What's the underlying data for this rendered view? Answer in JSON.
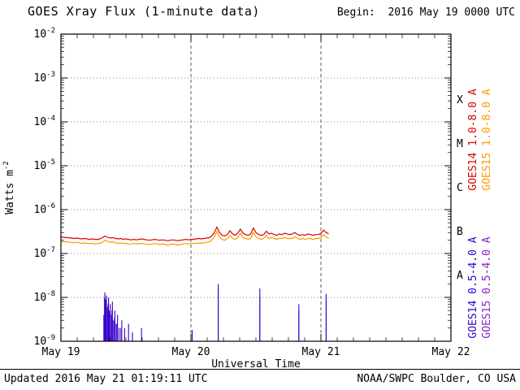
{
  "header": {
    "title": "GOES Xray Flux (1-minute data)",
    "begin": "Begin:  2016 May 19 0000 UTC"
  },
  "footer": {
    "updated": "Updated 2016 May 21 01:19:11 UTC",
    "source": "NOAA/SWPC Boulder, CO USA"
  },
  "colors": {
    "goes14_long": "#dd0000",
    "goes15_long": "#ff9900",
    "goes14_short": "#3300cc",
    "goes15_short": "#8822cc",
    "frame": "#000000",
    "background": "#ffffff"
  },
  "chart_data": {
    "type": "line",
    "title": "GOES Xray Flux (1-minute data)",
    "xlabel": "Universal Time",
    "ylabel_base": "Watts m",
    "ylabel_exp": "-2",
    "x_range_days": [
      0,
      3
    ],
    "x_ticks": [
      {
        "pos": 0,
        "label": "May 19"
      },
      {
        "pos": 1,
        "label": "May 20"
      },
      {
        "pos": 2,
        "label": "May 21"
      },
      {
        "pos": 3,
        "label": "May 22"
      }
    ],
    "x_minor_tick_days": 0.125,
    "y_log_min": -9,
    "y_log_max": -2,
    "grid": {
      "horizontal_decades": true,
      "vertical_days": [
        1,
        2
      ]
    },
    "flare_class_labels": [
      {
        "label": "X",
        "log_center": -3.5
      },
      {
        "label": "M",
        "log_center": -4.5
      },
      {
        "label": "C",
        "log_center": -5.5
      },
      {
        "label": "B",
        "log_center": -6.5
      },
      {
        "label": "A",
        "log_center": -7.5
      }
    ],
    "legend": [
      {
        "id": "goes14-long",
        "label": "GOES14 1.0-8.0 A",
        "color": "#dd0000"
      },
      {
        "id": "goes15-long",
        "label": "GOES15 1.0-8.0 A",
        "color": "#ff9900"
      },
      {
        "id": "goes14-short",
        "label": "GOES14 0.5-4.0 A",
        "color": "#3300cc"
      },
      {
        "id": "goes15-short",
        "label": "GOES15 0.5-4.0 A",
        "color": "#8822cc"
      }
    ],
    "series": [
      {
        "id": "goes15-long",
        "name": "GOES15 1.0-8.0 A",
        "kind": "line",
        "color": "#ff9900",
        "scale": 1e-07,
        "x_start": 0,
        "dx": 0.02,
        "values": [
          1.9,
          1.85,
          1.85,
          1.8,
          1.8,
          1.75,
          1.8,
          1.75,
          1.7,
          1.75,
          1.7,
          1.7,
          1.7,
          1.65,
          1.7,
          1.7,
          1.8,
          2.0,
          1.9,
          1.8,
          1.85,
          1.75,
          1.7,
          1.75,
          1.7,
          1.7,
          1.65,
          1.65,
          1.7,
          1.65,
          1.7,
          1.7,
          1.65,
          1.65,
          1.6,
          1.65,
          1.7,
          1.65,
          1.6,
          1.65,
          1.6,
          1.55,
          1.6,
          1.65,
          1.6,
          1.55,
          1.6,
          1.65,
          1.7,
          1.65,
          1.7,
          1.7,
          1.7,
          1.75,
          1.7,
          1.75,
          1.8,
          1.85,
          2.0,
          2.4,
          3.2,
          2.4,
          2.1,
          2.0,
          2.2,
          2.6,
          2.2,
          2.1,
          2.3,
          2.9,
          2.3,
          2.2,
          2.1,
          2.2,
          3.0,
          2.4,
          2.2,
          2.1,
          2.2,
          2.6,
          2.2,
          2.3,
          2.2,
          2.1,
          2.2,
          2.2,
          2.3,
          2.2,
          2.2,
          2.2,
          2.4,
          2.2,
          2.1,
          2.2,
          2.1,
          2.2,
          2.2,
          2.1,
          2.2,
          2.2,
          2.3,
          2.7,
          2.4,
          2.2
        ]
      },
      {
        "id": "goes14-long",
        "name": "GOES14 1.0-8.0 A",
        "kind": "line",
        "color": "#dd0000",
        "scale": 1e-07,
        "x_start": 0,
        "dx": 0.02,
        "values": [
          2.4,
          2.35,
          2.3,
          2.3,
          2.25,
          2.2,
          2.25,
          2.2,
          2.15,
          2.2,
          2.15,
          2.1,
          2.15,
          2.1,
          2.1,
          2.15,
          2.3,
          2.5,
          2.35,
          2.25,
          2.3,
          2.2,
          2.15,
          2.2,
          2.1,
          2.15,
          2.1,
          2.05,
          2.1,
          2.05,
          2.1,
          2.15,
          2.1,
          2.05,
          2.0,
          2.05,
          2.1,
          2.05,
          2.0,
          2.05,
          2.0,
          1.95,
          2.0,
          2.05,
          2.0,
          1.95,
          2.0,
          2.05,
          2.1,
          2.05,
          2.1,
          2.1,
          2.15,
          2.2,
          2.15,
          2.2,
          2.25,
          2.3,
          2.5,
          3.0,
          4.0,
          3.0,
          2.6,
          2.5,
          2.7,
          3.3,
          2.8,
          2.6,
          2.9,
          3.6,
          2.9,
          2.7,
          2.6,
          2.8,
          3.8,
          3.0,
          2.7,
          2.6,
          2.7,
          3.2,
          2.8,
          2.9,
          2.7,
          2.6,
          2.8,
          2.7,
          2.9,
          2.8,
          2.7,
          2.8,
          3.0,
          2.7,
          2.6,
          2.7,
          2.6,
          2.8,
          2.7,
          2.6,
          2.7,
          2.7,
          2.9,
          3.4,
          3.0,
          2.8
        ]
      },
      {
        "id": "goes15-short",
        "name": "GOES15 0.5-4.0 A",
        "kind": "spikes",
        "color": "#8822cc",
        "scale": 1e-09,
        "spikes": [
          [
            0.334,
            10
          ],
          [
            0.348,
            8
          ],
          [
            0.362,
            7
          ],
          [
            0.392,
            5
          ],
          [
            0.412,
            3.5
          ],
          [
            0.432,
            2.5
          ],
          [
            0.46,
            2
          ],
          [
            1.21,
            15
          ],
          [
            1.53,
            11
          ],
          [
            1.83,
            5
          ],
          [
            2.04,
            9
          ]
        ]
      },
      {
        "id": "goes14-short",
        "name": "GOES14 0.5-4.0 A",
        "kind": "spikes",
        "color": "#3300cc",
        "scale": 1e-09,
        "spikes": [
          [
            0.33,
            4
          ],
          [
            0.338,
            13
          ],
          [
            0.344,
            9
          ],
          [
            0.35,
            11
          ],
          [
            0.358,
            6
          ],
          [
            0.366,
            10
          ],
          [
            0.372,
            5
          ],
          [
            0.38,
            7
          ],
          [
            0.388,
            4
          ],
          [
            0.396,
            8
          ],
          [
            0.405,
            3
          ],
          [
            0.415,
            5
          ],
          [
            0.425,
            2.5
          ],
          [
            0.435,
            4
          ],
          [
            0.447,
            2
          ],
          [
            0.468,
            3
          ],
          [
            0.49,
            2
          ],
          [
            0.52,
            2.5
          ],
          [
            0.55,
            1.6
          ],
          [
            0.62,
            2
          ],
          [
            1.01,
            1.8
          ],
          [
            1.21,
            20
          ],
          [
            1.53,
            16
          ],
          [
            1.83,
            7
          ],
          [
            2.04,
            12
          ]
        ]
      }
    ]
  }
}
